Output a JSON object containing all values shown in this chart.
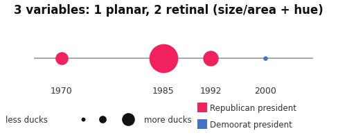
{
  "title": "3 variables: 1 planar, 2 retinal (size/area + hue)",
  "title_fontsize": 12,
  "title_fontweight": "bold",
  "background_color": "#ffffff",
  "timeline_color": "#999999",
  "points": [
    {
      "year": 1970,
      "size": 180,
      "color": "#f0215c"
    },
    {
      "year": 1985,
      "size": 900,
      "color": "#f0215c"
    },
    {
      "year": 1992,
      "size": 260,
      "color": "#f0215c"
    },
    {
      "year": 2000,
      "size": 22,
      "color": "#4472c4"
    }
  ],
  "xlim": [
    1963,
    2010
  ],
  "ylim": [
    -0.6,
    0.6
  ],
  "year_labels": [
    1970,
    1985,
    1992,
    2000
  ],
  "year_label_fontsize": 9,
  "legend_rep_color": "#f0215c",
  "legend_dem_color": "#4472c4",
  "legend_rep_label": "Republican president",
  "legend_dem_label": "Demoorat president",
  "legend_size_values": [
    18,
    60,
    180
  ],
  "legend_size_color": "#111111",
  "text_color": "#333333"
}
